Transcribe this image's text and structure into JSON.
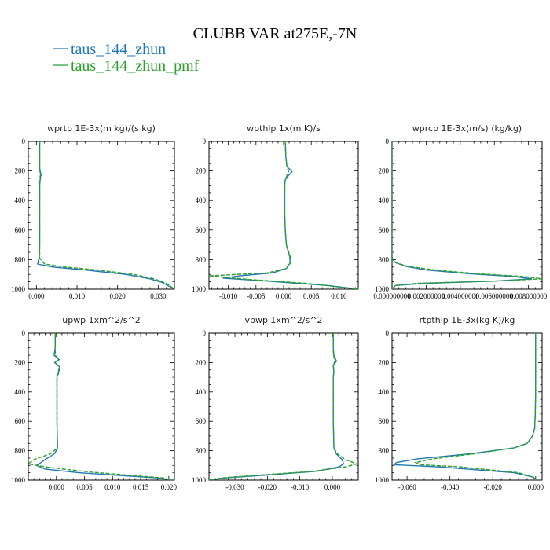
{
  "figure": {
    "title": "CLUBB VAR at275E,-7N",
    "colors": {
      "series_1": "#1f77b4",
      "series_2": "#2ca02c"
    }
  },
  "chart_data": [
    {
      "type": "line",
      "title": "wprtp   1E-3x(m kg)/(s kg)",
      "xlim": [
        -0.002,
        0.034
      ],
      "ylim": [
        1000,
        0
      ],
      "xticks": [
        0.0,
        0.01,
        0.02,
        0.03
      ],
      "xtick_labels": [
        "0.000",
        "0.010",
        "0.020",
        "0.030"
      ],
      "yticks": [
        0,
        200,
        400,
        600,
        800,
        1000
      ],
      "series": [
        {
          "name": "taus_144_zhun",
          "style": "solid",
          "x": [
            0.0008,
            0.0008,
            0.0008,
            0.001,
            0.0012,
            0.001,
            0.0008,
            0.0008,
            0.0008,
            0.0008,
            0.0008,
            0.0007,
            0.0003,
            0.004,
            0.012,
            0.022,
            0.028,
            0.031,
            0.033,
            0.034
          ],
          "y": [
            0,
            100,
            180,
            210,
            225,
            240,
            300,
            400,
            500,
            600,
            700,
            780,
            830,
            850,
            870,
            900,
            930,
            955,
            985,
            1000
          ]
        },
        {
          "name": "taus_144_zhun_pmf",
          "style": "dashed",
          "x": [
            0.0008,
            0.0008,
            0.0008,
            0.0009,
            0.001,
            0.0009,
            0.0008,
            0.0008,
            0.0008,
            0.0008,
            0.0008,
            0.0008,
            0.002,
            0.007,
            0.015,
            0.024,
            0.029,
            0.032,
            0.034
          ],
          "y": [
            0,
            100,
            180,
            210,
            225,
            240,
            300,
            400,
            500,
            600,
            700,
            790,
            830,
            850,
            870,
            900,
            930,
            960,
            1000
          ]
        }
      ]
    },
    {
      "type": "line",
      "title": "wpthlp   1x(m K)/s",
      "xlim": [
        -0.0135,
        0.0135
      ],
      "ylim": [
        1000,
        0
      ],
      "xticks": [
        -0.01,
        -0.005,
        0.0,
        0.005,
        0.01
      ],
      "xtick_labels": [
        "-0.010",
        "-0.005",
        "0.000",
        "0.005",
        "0.010"
      ],
      "yticks": [
        0,
        200,
        400,
        600,
        800,
        1000
      ],
      "series": [
        {
          "name": "taus_144_zhun",
          "style": "solid",
          "x": [
            0.0003,
            0.0004,
            0.0006,
            0.0015,
            0.0009,
            0.0003,
            0.0002,
            0.0002,
            0.0002,
            0.0003,
            0.0005,
            0.0011,
            0.0012,
            0.0005,
            -0.002,
            -0.008,
            -0.011,
            -0.003,
            0.008,
            0.0135
          ],
          "y": [
            0,
            100,
            170,
            205,
            230,
            260,
            300,
            400,
            500,
            600,
            700,
            780,
            820,
            860,
            890,
            910,
            925,
            945,
            975,
            1000
          ]
        },
        {
          "name": "taus_144_zhun_pmf",
          "style": "dashed",
          "x": [
            0.0003,
            0.0004,
            0.0006,
            0.0009,
            0.0006,
            0.0003,
            0.0002,
            0.0002,
            0.0002,
            0.0003,
            0.0005,
            0.0012,
            0.0013,
            0.0005,
            -0.003,
            -0.0135,
            -0.006,
            0.004,
            0.0135
          ],
          "y": [
            0,
            100,
            170,
            205,
            230,
            260,
            300,
            400,
            500,
            600,
            700,
            780,
            820,
            860,
            890,
            910,
            935,
            960,
            1000
          ]
        }
      ]
    },
    {
      "type": "line",
      "title": "wprcp   1E-3x(m/s) (kg/kg)",
      "xlim": [
        0.0,
        0.0088
      ],
      "ylim": [
        1000,
        0
      ],
      "xticks": [
        0.0,
        0.002,
        0.004,
        0.006,
        0.008
      ],
      "xtick_labels": [
        "0.000000000",
        "0.002000000",
        "0.004000000",
        "0.006000000",
        "0.008000000"
      ],
      "yticks": [
        0,
        200,
        400,
        600,
        800,
        1000
      ],
      "series": [
        {
          "name": "taus_144_zhun",
          "style": "solid",
          "x": [
            0.0,
            0.0,
            0.0,
            0.0,
            5e-05,
            0.0002,
            0.0008,
            0.002,
            0.0045,
            0.0072,
            0.0082,
            0.006,
            0.002,
            0.0002,
            0.0
          ],
          "y": [
            0,
            400,
            700,
            780,
            800,
            820,
            845,
            870,
            895,
            915,
            930,
            945,
            960,
            975,
            1000
          ]
        },
        {
          "name": "taus_144_zhun_pmf",
          "style": "dashed",
          "x": [
            0.0,
            0.0,
            0.0,
            0.0,
            5e-05,
            0.0002,
            0.0009,
            0.0025,
            0.005,
            0.0078,
            0.0088,
            0.006,
            0.0015,
            0.0002,
            0.0
          ],
          "y": [
            0,
            400,
            700,
            780,
            800,
            820,
            845,
            870,
            895,
            915,
            930,
            945,
            960,
            975,
            1000
          ]
        }
      ]
    },
    {
      "type": "line",
      "title": "upwp   1xm^2/s^2",
      "xlim": [
        -0.005,
        0.021
      ],
      "ylim": [
        1000,
        0
      ],
      "xticks": [
        0.0,
        0.005,
        0.01,
        0.015,
        0.02
      ],
      "xtick_labels": [
        "0.000",
        "0.005",
        "0.010",
        "0.015",
        "0.020"
      ],
      "yticks": [
        0,
        200,
        400,
        600,
        800,
        1000
      ],
      "series": [
        {
          "name": "taus_144_zhun",
          "style": "solid",
          "x": [
            -0.0002,
            -0.0002,
            -0.0004,
            0.0005,
            -0.0003,
            0.0006,
            0.0004,
            0.0001,
            0.0001,
            0.0001,
            0.0002,
            -0.0003,
            -0.002,
            -0.0035,
            -0.002,
            0.004,
            0.012,
            0.018,
            0.0205
          ],
          "y": [
            0,
            100,
            150,
            180,
            200,
            230,
            270,
            300,
            400,
            600,
            780,
            820,
            860,
            900,
            925,
            950,
            970,
            985,
            1000
          ]
        },
        {
          "name": "taus_144_zhun_pmf",
          "style": "dashed",
          "x": [
            -0.0002,
            -0.0002,
            -0.0002,
            0.0004,
            -0.0002,
            0.0005,
            0.0003,
            0.0001,
            0.0001,
            0.0001,
            0.0002,
            -0.001,
            -0.004,
            -0.005,
            -0.001,
            0.006,
            0.014,
            0.019,
            0.0205
          ],
          "y": [
            0,
            100,
            150,
            180,
            200,
            230,
            270,
            300,
            400,
            600,
            780,
            820,
            860,
            890,
            915,
            945,
            970,
            985,
            1000
          ]
        }
      ]
    },
    {
      "type": "line",
      "title": "vpwp   1xm^2/s^2",
      "xlim": [
        -0.038,
        0.008
      ],
      "ylim": [
        1000,
        0
      ],
      "xticks": [
        -0.03,
        -0.02,
        -0.01,
        0.0
      ],
      "xtick_labels": [
        "-0.030",
        "-0.020",
        "-0.010",
        "0.000"
      ],
      "yticks": [
        0,
        200,
        400,
        600,
        800,
        1000
      ],
      "series": [
        {
          "name": "taus_144_zhun",
          "style": "solid",
          "x": [
            0.0003,
            0.0003,
            0.0005,
            0.0013,
            0.0003,
            0.0005,
            0.0003,
            0.0003,
            0.0003,
            0.0005,
            0.0012,
            0.003,
            0.0035,
            0.002,
            -0.005,
            -0.02,
            -0.033,
            -0.038
          ],
          "y": [
            0,
            100,
            150,
            190,
            220,
            260,
            300,
            400,
            600,
            780,
            820,
            860,
            890,
            910,
            940,
            965,
            985,
            1000
          ]
        },
        {
          "name": "taus_144_zhun_pmf",
          "style": "dashed",
          "x": [
            0.0003,
            0.0003,
            0.0004,
            0.0008,
            0.0003,
            0.0005,
            0.0003,
            0.0003,
            0.0003,
            0.0005,
            0.0015,
            0.004,
            0.0075,
            0.004,
            -0.006,
            -0.022,
            -0.034,
            -0.038
          ],
          "y": [
            0,
            100,
            150,
            190,
            220,
            260,
            300,
            400,
            600,
            780,
            820,
            860,
            890,
            910,
            940,
            965,
            985,
            1000
          ]
        }
      ]
    },
    {
      "type": "line",
      "title": "rtpthlp   1E-3x(kg K)/kg",
      "xlim": [
        -0.067,
        0.003
      ],
      "ylim": [
        1000,
        0
      ],
      "xticks": [
        -0.06,
        -0.04,
        -0.02,
        0.0
      ],
      "xtick_labels": [
        "-0.060",
        "-0.040",
        "-0.020",
        "0.000"
      ],
      "yticks": [
        0,
        200,
        400,
        600,
        800,
        1000
      ],
      "series": [
        {
          "name": "taus_144_zhun",
          "style": "solid",
          "x": [
            0.0,
            0.0,
            0.0,
            -0.0002,
            -0.0005,
            -0.0015,
            -0.004,
            -0.01,
            -0.03,
            -0.055,
            -0.065,
            -0.066,
            -0.045,
            -0.01,
            -0.001,
            0.0
          ],
          "y": [
            0,
            200,
            400,
            550,
            650,
            700,
            750,
            780,
            820,
            855,
            880,
            895,
            910,
            950,
            980,
            1000
          ]
        },
        {
          "name": "taus_144_zhun_pmf",
          "style": "dashed",
          "x": [
            0.0,
            0.0,
            0.0,
            -0.0002,
            -0.0005,
            -0.0015,
            -0.004,
            -0.01,
            -0.028,
            -0.048,
            -0.056,
            -0.054,
            -0.035,
            -0.008,
            -0.001,
            0.0
          ],
          "y": [
            0,
            200,
            400,
            550,
            650,
            700,
            750,
            780,
            820,
            855,
            880,
            895,
            910,
            950,
            980,
            1000
          ]
        }
      ]
    }
  ]
}
